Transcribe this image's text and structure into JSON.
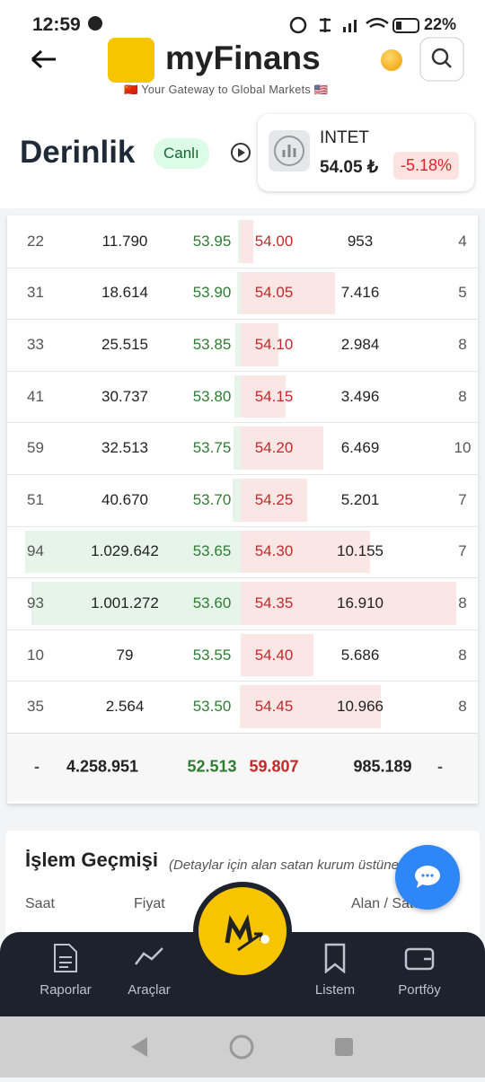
{
  "status": {
    "time": "12:59",
    "battery": "22%"
  },
  "header": {
    "brand": "myFinans",
    "tagline": "🇨🇳 Your Gateway to Global Markets 🇺🇸"
  },
  "page": {
    "title": "Derinlik",
    "live": "Canlı"
  },
  "ticker": {
    "symbol": "INTET",
    "price": "54.05 ₺",
    "change": "-5.18%"
  },
  "depth": {
    "rows": [
      [
        "22",
        "11.790",
        "53.95",
        "54.00",
        "953",
        "4"
      ],
      [
        "31",
        "18.614",
        "53.90",
        "54.05",
        "7.416",
        "5"
      ],
      [
        "33",
        "25.515",
        "53.85",
        "54.10",
        "2.984",
        "8"
      ],
      [
        "41",
        "30.737",
        "53.80",
        "54.15",
        "3.496",
        "8"
      ],
      [
        "59",
        "32.513",
        "53.75",
        "54.20",
        "6.469",
        "10"
      ],
      [
        "51",
        "40.670",
        "53.70",
        "54.25",
        "5.201",
        "7"
      ],
      [
        "94",
        "1.029.642",
        "53.65",
        "54.30",
        "10.155",
        "7"
      ],
      [
        "93",
        "1.001.272",
        "53.60",
        "54.35",
        "16.910",
        "8"
      ],
      [
        "10",
        "79",
        "53.55",
        "54.40",
        "5.686",
        "8"
      ],
      [
        "35",
        "2.564",
        "53.50",
        "54.45",
        "10.966",
        "8"
      ]
    ],
    "totals": [
      "-",
      "4.258.951",
      "52.513",
      "59.807",
      "985.189",
      "-"
    ]
  },
  "history": {
    "title": "İşlem Geçmişi",
    "note": "(Detaylar için alan satan kurum üstüne tıklayın)",
    "columns": [
      "Saat",
      "Fiyat",
      "Alan / Satan"
    ]
  },
  "nav": [
    "Raporlar",
    "Araçlar",
    "Listem",
    "Portföy"
  ]
}
